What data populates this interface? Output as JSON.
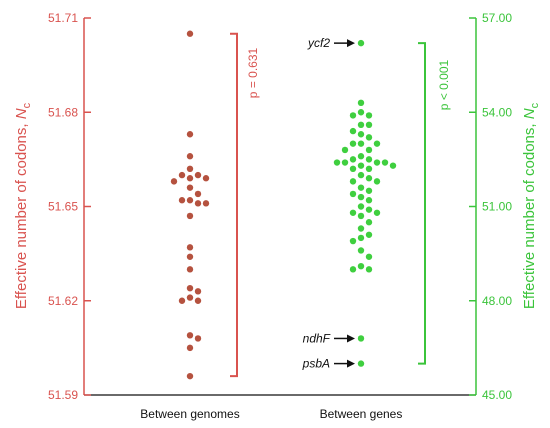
{
  "chart_data": {
    "type": "scatter",
    "categories": [
      "Between genomes",
      "Between genes"
    ],
    "left_axis": {
      "label_main": "Effective number of codons, ",
      "label_italic": "N",
      "label_sub": "c",
      "ylim": [
        51.59,
        51.71
      ],
      "ticks": [
        "51.59",
        "51.62",
        "51.65",
        "51.68",
        "51.71"
      ],
      "color": "#d9534f"
    },
    "right_axis": {
      "label_main": "Effective number of codons, ",
      "label_italic": "N",
      "label_sub": "c",
      "ylim": [
        45.0,
        57.0
      ],
      "ticks": [
        "45.00",
        "48.00",
        "51.00",
        "54.00",
        "57.00"
      ],
      "color": "#3bc43b"
    },
    "series": [
      {
        "category": "Between genomes",
        "axis": "left",
        "color": "#b5523f",
        "values": [
          51.705,
          51.673,
          51.666,
          51.662,
          51.66,
          51.66,
          51.659,
          51.659,
          51.658,
          51.656,
          51.654,
          51.652,
          51.652,
          51.651,
          51.651,
          51.647,
          51.637,
          51.634,
          51.63,
          51.624,
          51.623,
          51.621,
          51.62,
          51.62,
          51.609,
          51.608,
          51.605,
          51.596
        ]
      },
      {
        "category": "Between genes",
        "axis": "right",
        "color": "#3fcf3f",
        "values": [
          56.2,
          54.3,
          54.0,
          53.9,
          53.9,
          53.6,
          53.6,
          53.4,
          53.3,
          53.2,
          53.0,
          53.0,
          53.0,
          52.8,
          52.8,
          52.6,
          52.5,
          52.5,
          52.4,
          52.4,
          52.4,
          52.4,
          52.3,
          52.3,
          52.2,
          52.2,
          52.0,
          51.9,
          51.8,
          51.8,
          51.6,
          51.5,
          51.4,
          51.3,
          51.2,
          51.0,
          50.9,
          50.8,
          50.8,
          50.7,
          50.5,
          50.3,
          50.1,
          50.0,
          49.9,
          49.6,
          49.4,
          49.1,
          49.0,
          49.0,
          46.8,
          46.0
        ]
      }
    ],
    "brackets": [
      {
        "axis": "left",
        "range": [
          51.596,
          51.705
        ],
        "pvalue": "p = 0.631",
        "color": "#d9534f"
      },
      {
        "axis": "right",
        "range": [
          46.0,
          56.2
        ],
        "pvalue": "p < 0.001",
        "color": "#3bc43b"
      }
    ],
    "annotations": [
      {
        "label": "ycf2",
        "value": 56.2
      },
      {
        "label": "ndhF",
        "value": 46.8
      },
      {
        "label": "psbA",
        "value": 46.0
      }
    ]
  }
}
